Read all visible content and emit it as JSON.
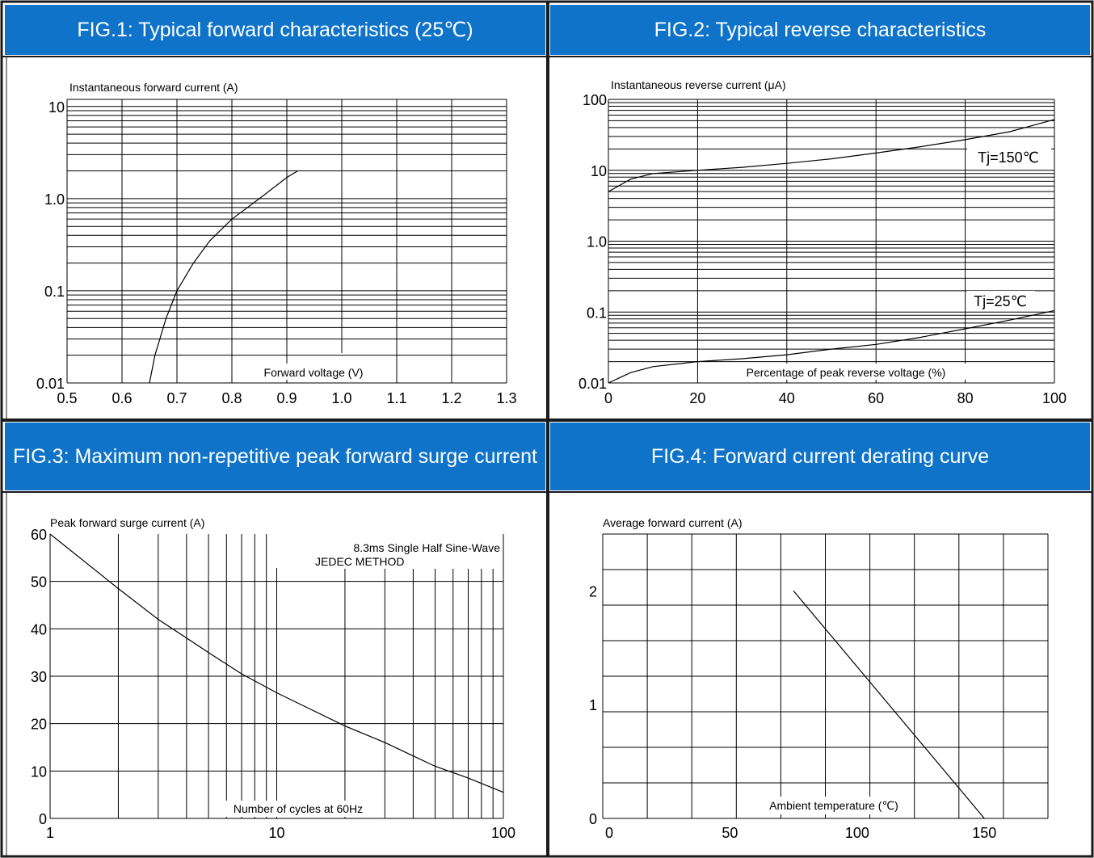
{
  "colors": {
    "header_bg": "#0E73C9",
    "header_text": "#FFFFFF",
    "border": "#1A1A1A",
    "grid": "#000000",
    "curve": "#000000"
  },
  "headers": {
    "fig1": "FIG.1: Typical forward characteristics (25℃)",
    "fig2": "FIG.2: Typical reverse characteristics",
    "fig3": "FIG.3: Maximum non-repetitive peak forward surge current",
    "fig4": "FIG.4: Forward current derating curve"
  },
  "chart_data": [
    {
      "id": "fig1",
      "type": "line",
      "ylabel": "Instantaneous forward current (A)",
      "xlabel": "Forward voltage (V)",
      "x_scale": "linear",
      "y_scale": "log",
      "xlim": [
        0.5,
        1.3
      ],
      "ylim": [
        0.01,
        10
      ],
      "xticks": [
        "0.5",
        "0.6",
        "0.7",
        "0.8",
        "0.9",
        "1.0",
        "1.1",
        "1.2",
        "1.3"
      ],
      "yticks": [
        "0.01",
        "0.1",
        "1.0",
        "10"
      ],
      "grid": true,
      "series": [
        {
          "x": [
            0.65,
            0.66,
            0.68,
            0.7,
            0.73,
            0.76,
            0.8,
            0.85,
            0.9,
            0.92
          ],
          "y": [
            0.01,
            0.02,
            0.05,
            0.1,
            0.2,
            0.35,
            0.6,
            1.0,
            1.7,
            2.0
          ]
        }
      ]
    },
    {
      "id": "fig2",
      "type": "line",
      "ylabel": "Instantaneous reverse current (μA)",
      "xlabel": "Percentage of peak reverse voltage (%)",
      "x_scale": "linear",
      "y_scale": "log",
      "xlim": [
        0,
        100
      ],
      "ylim": [
        0.01,
        100
      ],
      "xticks": [
        "0",
        "20",
        "40",
        "60",
        "80",
        "100"
      ],
      "yticks": [
        "0.01",
        "0.1",
        "1.0",
        "10",
        "100"
      ],
      "grid": true,
      "annotations": [
        "Tj=150℃",
        "Tj=25℃"
      ],
      "series": [
        {
          "name": "Tj=150℃",
          "x": [
            0,
            5,
            10,
            20,
            30,
            40,
            50,
            60,
            70,
            80,
            90,
            100
          ],
          "y": [
            5.0,
            7.5,
            9.0,
            10.0,
            11.0,
            12.5,
            14.5,
            17.5,
            21.5,
            27,
            35,
            52
          ]
        },
        {
          "name": "Tj=25℃",
          "x": [
            0,
            5,
            10,
            20,
            30,
            40,
            50,
            60,
            70,
            80,
            90,
            100
          ],
          "y": [
            0.01,
            0.014,
            0.017,
            0.02,
            0.022,
            0.025,
            0.03,
            0.035,
            0.044,
            0.058,
            0.077,
            0.105
          ]
        }
      ]
    },
    {
      "id": "fig3",
      "type": "line",
      "ylabel": "Peak forward surge current (A)",
      "xlabel": "Number of cycles at 60Hz",
      "x_scale": "log",
      "y_scale": "linear",
      "xlim": [
        1,
        100
      ],
      "ylim": [
        0,
        60
      ],
      "xticks": [
        "1",
        "10",
        "100"
      ],
      "yticks": [
        "0",
        "10",
        "20",
        "30",
        "40",
        "50",
        "60"
      ],
      "grid": true,
      "annotations": [
        "8.3ms Single Half Sine-Wave",
        "JEDEC METHOD"
      ],
      "series": [
        {
          "x": [
            1,
            2,
            3,
            5,
            7,
            10,
            20,
            30,
            50,
            70,
            100
          ],
          "y": [
            60,
            48.5,
            42,
            35,
            30.5,
            26.5,
            19.5,
            16,
            11,
            8.5,
            5.5
          ]
        }
      ]
    },
    {
      "id": "fig4",
      "type": "line",
      "ylabel": "Average forward current (A)",
      "xlabel": "Ambient temperature (℃)",
      "x_scale": "linear",
      "y_scale": "linear",
      "xlim": [
        0,
        175
      ],
      "ylim": [
        0,
        2.5
      ],
      "xticks": [
        "0",
        "50",
        "100",
        "150"
      ],
      "yticks": [
        "0",
        "1",
        "2"
      ],
      "grid": true,
      "series": [
        {
          "x": [
            75,
            150
          ],
          "y": [
            2.0,
            0
          ]
        }
      ]
    }
  ]
}
